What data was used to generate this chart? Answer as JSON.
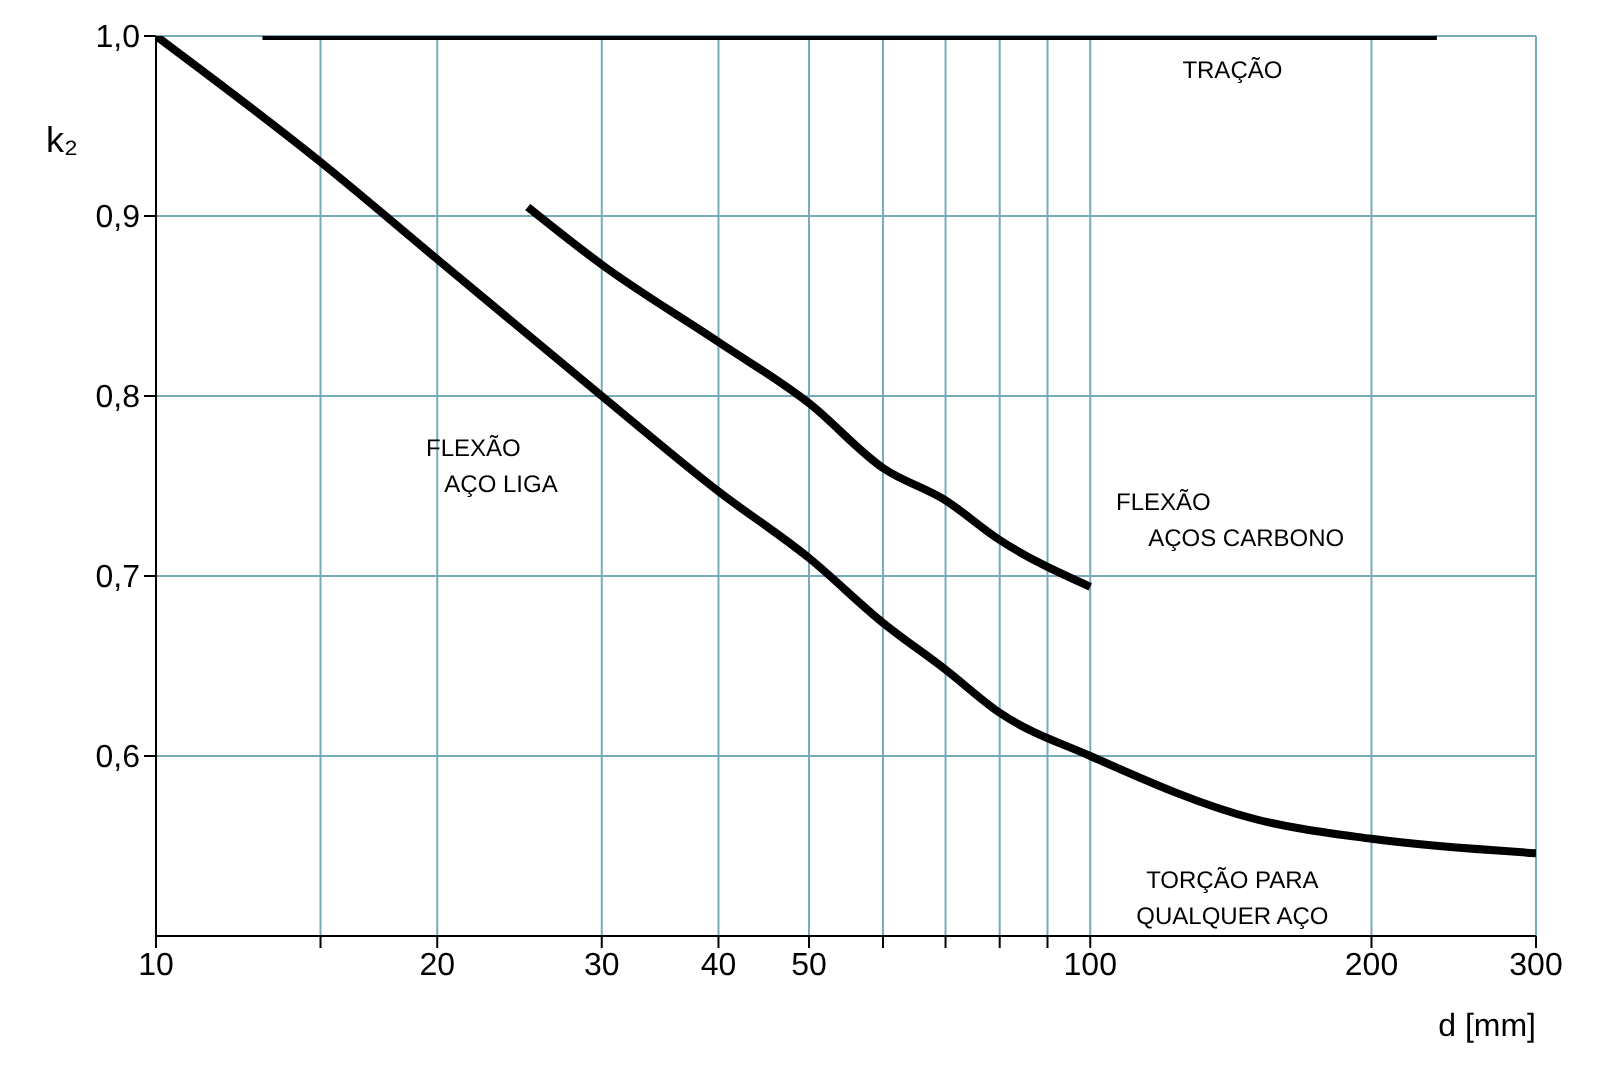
{
  "chart_data": {
    "type": "line",
    "xlabel": "d [mm]",
    "ylabel": "k₂",
    "log": "x",
    "grid": true,
    "legend": false,
    "marker": "none",
    "line_style": "solid",
    "xlim": [
      10,
      300
    ],
    "ylim": [
      0.5,
      1.0
    ],
    "xticks": [
      10,
      {
        "value": 15,
        "label": null
      },
      20,
      30,
      40,
      50,
      {
        "value": 60,
        "label": null
      },
      {
        "value": 70,
        "label": null
      },
      {
        "value": 80,
        "label": null
      },
      {
        "value": 90,
        "label": null
      },
      100,
      200,
      300
    ],
    "yticks": [
      {
        "value": 0.6,
        "label": "0,6"
      },
      {
        "value": 0.7,
        "label": "0,7"
      },
      {
        "value": 0.8,
        "label": "0,8"
      },
      {
        "value": 0.9,
        "label": "0,9"
      },
      {
        "value": 1.0,
        "label": "1,0"
      }
    ],
    "series": [
      {
        "color": "#000000",
        "x": [
          13,
          235
        ],
        "values": [
          1.0,
          1.0
        ]
      },
      {
        "color": "#000000",
        "x": [
          10,
          15,
          20,
          30,
          40,
          50,
          60,
          70,
          80,
          100,
          150,
          200,
          300
        ],
        "values": [
          1.0,
          0.93,
          0.876,
          0.8,
          0.747,
          0.71,
          0.674,
          0.648,
          0.624,
          0.6,
          0.565,
          0.554,
          0.546
        ]
      },
      {
        "color": "#000000",
        "x": [
          25,
          30,
          40,
          50,
          60,
          70,
          80,
          100
        ],
        "values": [
          0.905,
          0.873,
          0.83,
          0.796,
          0.76,
          0.742,
          0.72,
          0.694
        ]
      }
    ],
    "annotations": [
      "TRAÇÃO",
      "FLEXÃO",
      "AÇO LIGA",
      "FLEXÃO",
      "AÇOS CARBONO",
      "TORÇÃO PARA",
      "QUALQUER AÇO"
    ]
  }
}
